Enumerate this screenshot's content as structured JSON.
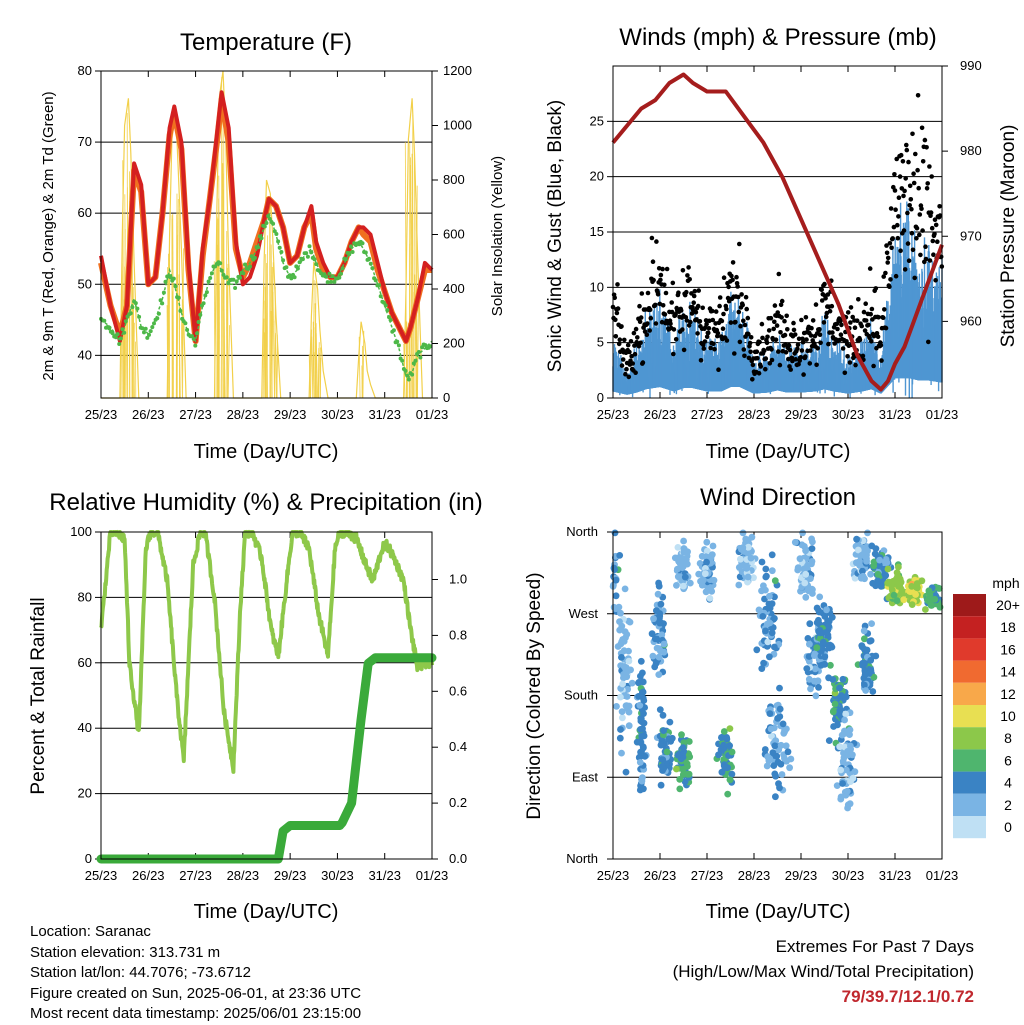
{
  "x_ticks": [
    "25/23",
    "26/23",
    "27/23",
    "28/23",
    "29/23",
    "30/23",
    "31/23",
    "01/23"
  ],
  "xlabel": "Time (Day/UTC)",
  "chart_data": [
    {
      "type": "line",
      "title": "Temperature (F)",
      "ylabel": "2m & 9m T (Red, Orange) & 2m Td (Green)",
      "ylabel_right": "Solar Insolation (Yellow)",
      "ylim": [
        34,
        80
      ],
      "yticks": [
        40,
        50,
        60,
        70,
        80
      ],
      "ylim_right": [
        0,
        1200
      ],
      "yticks_right": [
        0,
        200,
        400,
        600,
        800,
        1000,
        1200
      ],
      "grid": true,
      "colors": {
        "t2m": "#d42020",
        "t9m": "#f07020",
        "td": "#4db848",
        "solar": "#f2d04a"
      },
      "x_days": [
        0,
        0.2,
        0.4,
        0.55,
        0.7,
        0.85,
        1.0,
        1.15,
        1.3,
        1.45,
        1.55,
        1.7,
        1.85,
        2.0,
        2.15,
        2.3,
        2.45,
        2.55,
        2.7,
        2.85,
        3.0,
        3.15,
        3.3,
        3.45,
        3.55,
        3.7,
        3.85,
        4.0,
        4.15,
        4.3,
        4.45,
        4.55,
        4.7,
        4.85,
        5.0,
        5.15,
        5.3,
        5.45,
        5.55,
        5.7,
        5.85,
        6.0,
        6.15,
        6.3,
        6.45,
        6.55,
        6.7,
        6.85,
        7.0
      ],
      "series": [
        {
          "name": "2m T",
          "values": [
            54,
            47,
            42,
            47,
            67,
            64,
            50,
            51,
            60,
            72,
            75,
            70,
            53,
            42,
            55,
            62,
            71,
            77,
            72,
            56,
            50,
            51,
            54,
            59,
            62,
            61,
            58,
            53,
            54,
            58,
            61,
            56,
            53,
            51,
            51,
            53,
            56,
            58,
            58,
            57,
            53,
            49,
            46,
            44,
            42,
            44,
            48,
            53,
            52
          ]
        },
        {
          "name": "9m T",
          "values": [
            53,
            47,
            43,
            47,
            66,
            63,
            50,
            51,
            60,
            71,
            74,
            69,
            52,
            42,
            54,
            62,
            70,
            76,
            70,
            55,
            51,
            53,
            56,
            59,
            62,
            61,
            58,
            53,
            54,
            58,
            60,
            55,
            52,
            51,
            51,
            53,
            56,
            58,
            57,
            56,
            52,
            49,
            46,
            44,
            42,
            44,
            48,
            52,
            52
          ]
        },
        {
          "name": "2m Td",
          "values": [
            45,
            44,
            42,
            45,
            48,
            44,
            43,
            45,
            48,
            52,
            50,
            46,
            43,
            42,
            47,
            51,
            53,
            52,
            50,
            50,
            52,
            53,
            55,
            58,
            60,
            57,
            53,
            51,
            52,
            54,
            55,
            53,
            51,
            51,
            51,
            53,
            55,
            56,
            55,
            53,
            50,
            47,
            44,
            41,
            37,
            37,
            40,
            41,
            42
          ]
        }
      ],
      "solar": {
        "x_days": [
          0,
          0.4,
          0.45,
          0.5,
          0.58,
          0.63,
          0.7,
          0.8,
          1.0,
          1.4,
          1.45,
          1.5,
          1.58,
          1.63,
          1.7,
          1.8,
          2.0,
          2.4,
          2.45,
          2.5,
          2.58,
          2.63,
          2.7,
          2.8,
          3.0,
          3.4,
          3.45,
          3.5,
          3.58,
          3.63,
          3.7,
          3.8,
          4.0,
          4.4,
          4.45,
          4.5,
          4.58,
          4.63,
          4.7,
          4.8,
          5.0,
          5.4,
          5.45,
          5.5,
          5.58,
          5.63,
          5.7,
          5.8,
          6.0,
          6.4,
          6.45,
          6.5,
          6.58,
          6.63,
          6.7,
          6.8,
          7.0
        ],
        "values": [
          0,
          0,
          600,
          1000,
          1100,
          900,
          500,
          0,
          0,
          0,
          600,
          950,
          1050,
          850,
          550,
          0,
          0,
          0,
          700,
          1100,
          1200,
          1000,
          500,
          0,
          0,
          0,
          500,
          800,
          750,
          600,
          300,
          0,
          0,
          0,
          300,
          500,
          400,
          250,
          100,
          0,
          0,
          0,
          150,
          280,
          200,
          100,
          50,
          0,
          0,
          0,
          400,
          950,
          1100,
          900,
          500,
          0,
          0
        ]
      }
    },
    {
      "type": "scatter",
      "title": "Winds (mph) & Pressure (mb)",
      "ylabel": "Sonic Wind & Gust (Blue, Black)",
      "ylabel_right": "Station Pressure (Maroon)",
      "ylim": [
        0,
        30
      ],
      "yticks": [
        0,
        5,
        10,
        15,
        20,
        25
      ],
      "ylim_right": [
        951,
        990
      ],
      "yticks_right": [
        960,
        970,
        980,
        990
      ],
      "grid": true,
      "colors": {
        "wind": "#4f96d2",
        "gust": "#000000",
        "pressure": "#a51d1d"
      },
      "wind_x": [
        0,
        0.3,
        0.5,
        0.7,
        1.0,
        1.3,
        1.5,
        1.7,
        2.0,
        2.3,
        2.5,
        2.7,
        3.0,
        3.3,
        3.5,
        3.7,
        4.0,
        4.3,
        4.5,
        4.7,
        5.0,
        5.3,
        5.5,
        5.7,
        6.0,
        6.3,
        6.5,
        6.7,
        7.0
      ],
      "wind_mean": [
        3,
        1.5,
        2.5,
        4,
        5,
        3,
        4.5,
        4.5,
        3,
        3,
        5,
        5,
        2,
        2.5,
        3.5,
        2.5,
        2.5,
        3,
        4,
        3,
        2,
        3,
        4,
        2,
        9,
        9,
        8,
        8,
        7
      ],
      "gust_mean": [
        8,
        3,
        5,
        8,
        11,
        6,
        8,
        9,
        6,
        6,
        9,
        9,
        4,
        5,
        7,
        5,
        5,
        6,
        8,
        7,
        5,
        6,
        8,
        5,
        17,
        18,
        16,
        16,
        14
      ],
      "pressure": {
        "x_days": [
          0,
          0.3,
          0.6,
          0.9,
          1.2,
          1.5,
          1.7,
          2.0,
          2.4,
          2.8,
          3.2,
          3.6,
          4.0,
          4.4,
          4.8,
          5.2,
          5.5,
          5.7,
          5.85,
          6.0,
          6.2,
          6.4,
          6.6,
          6.8,
          7.0
        ],
        "values": [
          981,
          983,
          985,
          986,
          988,
          989,
          988,
          987,
          987,
          984,
          981,
          977,
          972,
          967,
          962,
          956,
          953,
          952,
          953,
          955,
          957,
          960,
          963,
          966,
          969
        ]
      }
    },
    {
      "type": "line",
      "title": "Relative Humidity (%) & Precipitation (in)",
      "ylabel": "Percent & Total Rainfall",
      "ylim": [
        0,
        100
      ],
      "yticks": [
        0,
        20,
        40,
        60,
        80,
        100
      ],
      "ylim_right": [
        0,
        1.17
      ],
      "yticks_right": [
        "0.0",
        "0.2",
        "0.4",
        "0.6",
        "0.8",
        "1.0"
      ],
      "grid": true,
      "colors": {
        "rh": "#8ec84a",
        "precip": "#3aaa3a"
      },
      "rh": {
        "x_days": [
          0,
          0.2,
          0.3,
          0.5,
          0.6,
          0.8,
          0.95,
          1.05,
          1.2,
          1.4,
          1.6,
          1.75,
          1.95,
          2.1,
          2.2,
          2.4,
          2.6,
          2.8,
          2.95,
          3.05,
          3.2,
          3.4,
          3.6,
          3.75,
          3.95,
          4.05,
          4.2,
          4.4,
          4.6,
          4.8,
          4.95,
          5.05,
          5.2,
          5.4,
          5.6,
          5.75,
          5.95,
          6.05,
          6.2,
          6.4,
          6.55,
          6.7,
          6.85,
          7.0
        ],
        "values": [
          70,
          100,
          100,
          98,
          60,
          38,
          95,
          100,
          100,
          85,
          50,
          30,
          90,
          100,
          100,
          80,
          45,
          28,
          78,
          100,
          100,
          92,
          70,
          62,
          88,
          100,
          100,
          95,
          75,
          62,
          95,
          100,
          100,
          98,
          90,
          85,
          95,
          96,
          92,
          85,
          70,
          58,
          60,
          60
        ]
      },
      "precip": {
        "x_days": [
          0,
          1,
          2,
          3,
          3.5,
          3.75,
          3.85,
          4,
          4.5,
          5.0,
          5.05,
          5.1,
          5.3,
          5.5,
          5.65,
          5.8,
          6,
          6.5,
          7.0
        ],
        "values": [
          0,
          0,
          0,
          0,
          0,
          0,
          0.1,
          0.12,
          0.12,
          0.12,
          0.12,
          0.13,
          0.2,
          0.5,
          0.7,
          0.72,
          0.72,
          0.72,
          0.72
        ]
      }
    },
    {
      "type": "scatter",
      "title": "Wind Direction",
      "ylabel": "Direction (Colored By Speed)",
      "yticks": [
        "North",
        "West",
        "South",
        "East",
        "North"
      ],
      "grid": true,
      "legend_title": "mph",
      "legend_labels": [
        "20+",
        "18",
        "16",
        "14",
        "12",
        "10",
        "8",
        "6",
        "4",
        "2",
        "0"
      ],
      "legend_colors": [
        "#9e1a1a",
        "#c42121",
        "#e03a2c",
        "#f06a30",
        "#f8a84a",
        "#e8df52",
        "#8cc84a",
        "#4fb56e",
        "#3a83c4",
        "#7ab4e4",
        "#bfe0f4"
      ],
      "clusters": [
        {
          "x": 0.0,
          "dir": 310,
          "spread_x": 0.15,
          "spread_d": 50,
          "speed": 3
        },
        {
          "x": 0.25,
          "dir": 200,
          "spread_x": 0.15,
          "spread_d": 90,
          "speed": 2
        },
        {
          "x": 0.6,
          "dir": 140,
          "spread_x": 0.1,
          "spread_d": 80,
          "speed": 4
        },
        {
          "x": 1.0,
          "dir": 250,
          "spread_x": 0.15,
          "spread_d": 60,
          "speed": 3
        },
        {
          "x": 1.1,
          "dir": 120,
          "spread_x": 0.15,
          "spread_d": 40,
          "speed": 4
        },
        {
          "x": 1.5,
          "dir": 320,
          "spread_x": 0.15,
          "spread_d": 30,
          "speed": 2
        },
        {
          "x": 1.5,
          "dir": 110,
          "spread_x": 0.15,
          "spread_d": 30,
          "speed": 5
        },
        {
          "x": 2.0,
          "dir": 320,
          "spread_x": 0.15,
          "spread_d": 30,
          "speed": 2
        },
        {
          "x": 2.4,
          "dir": 110,
          "spread_x": 0.15,
          "spread_d": 30,
          "speed": 5
        },
        {
          "x": 2.8,
          "dir": 330,
          "spread_x": 0.2,
          "spread_d": 30,
          "speed": 2
        },
        {
          "x": 3.3,
          "dir": 270,
          "spread_x": 0.25,
          "spread_d": 60,
          "speed": 3
        },
        {
          "x": 3.5,
          "dir": 130,
          "spread_x": 0.3,
          "spread_d": 60,
          "speed": 3
        },
        {
          "x": 4.1,
          "dir": 320,
          "spread_x": 0.25,
          "spread_d": 40,
          "speed": 2
        },
        {
          "x": 4.3,
          "dir": 220,
          "spread_x": 0.2,
          "spread_d": 40,
          "speed": 3
        },
        {
          "x": 4.5,
          "dir": 250,
          "spread_x": 0.2,
          "spread_d": 50,
          "speed": 4
        },
        {
          "x": 4.8,
          "dir": 170,
          "spread_x": 0.2,
          "spread_d": 40,
          "speed": 5
        },
        {
          "x": 5.0,
          "dir": 110,
          "spread_x": 0.2,
          "spread_d": 50,
          "speed": 2
        },
        {
          "x": 5.3,
          "dir": 330,
          "spread_x": 0.2,
          "spread_d": 30,
          "speed": 2
        },
        {
          "x": 5.4,
          "dir": 210,
          "spread_x": 0.15,
          "spread_d": 40,
          "speed": 4
        },
        {
          "x": 5.7,
          "dir": 320,
          "spread_x": 0.2,
          "spread_d": 30,
          "speed": 4
        },
        {
          "x": 6.0,
          "dir": 300,
          "spread_x": 0.2,
          "spread_d": 20,
          "speed": 8
        },
        {
          "x": 6.4,
          "dir": 295,
          "spread_x": 0.2,
          "spread_d": 15,
          "speed": 9
        },
        {
          "x": 6.8,
          "dir": 288,
          "spread_x": 0.2,
          "spread_d": 15,
          "speed": 6
        }
      ]
    }
  ],
  "info": {
    "location": "Location: Saranac",
    "elevation": "Station elevation: 313.731 m",
    "latlon": "Station lat/lon: 44.7076; -73.6712",
    "created": "Figure created on Sun, 2025-06-01, at 23:36 UTC",
    "recent": "Most recent data timestamp: 2025/06/01 23:15:00"
  },
  "extremes": {
    "title": "Extremes For Past 7 Days",
    "subtitle": "(High/Low/Max Wind/Total Precipitation)",
    "values": "79/39.7/12.1/0.72"
  }
}
